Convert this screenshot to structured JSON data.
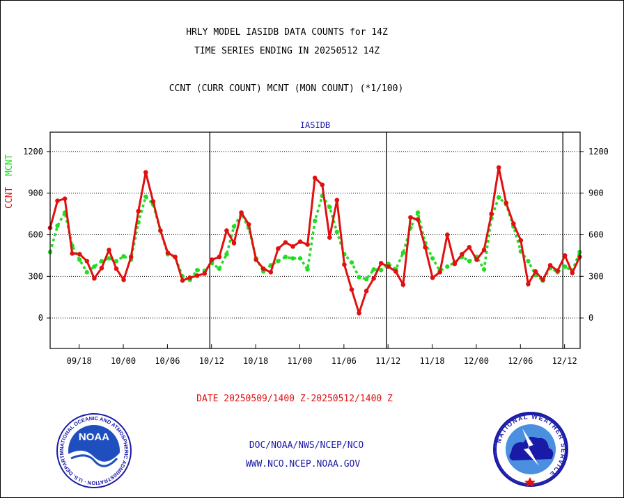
{
  "header": {
    "line1": "HRLY MODEL IASIDB DATA COUNTS for 14Z",
    "line2": "TIME SERIES ENDING IN 20250512 14Z",
    "line3": "CCNT (CURR COUNT) MCNT (MON COUNT) (*1/100)"
  },
  "footer": {
    "date_range": "DATE 20250509/1400 Z-20250512/1400 Z",
    "org_path": "DOC/NOAA/NWS/NCEP/NCO",
    "website": "WWW.NCO.NCEP.NOAA.GOV"
  },
  "logos": {
    "noaa_text": "NOAA",
    "noaa_ring": "NATIONAL OCEANIC AND ATMOSPHERIC ADMINISTRATION · U.S. DEPARTMENT OF COMMERCE ·",
    "nws_ring": "NATIONAL WEATHER SERVICE"
  },
  "chart_data": {
    "type": "line",
    "title": "IASIDB",
    "ylabel_ccnt": "CCNT",
    "ylabel_mcnt": "MCNT",
    "ylim": [
      -220,
      1340
    ],
    "yticks": [
      0,
      300,
      600,
      900,
      1200
    ],
    "grid": true,
    "x_count": 73,
    "x_tick_labels": [
      {
        "i": 3,
        "label": "09/18"
      },
      {
        "i": 9,
        "label": "10/00"
      },
      {
        "i": 15,
        "label": "10/06"
      },
      {
        "i": 21,
        "label": "10/12"
      },
      {
        "i": 27,
        "label": "10/18"
      },
      {
        "i": 33,
        "label": "11/00"
      },
      {
        "i": 39,
        "label": "11/06"
      },
      {
        "i": 45,
        "label": "11/12"
      },
      {
        "i": 51,
        "label": "11/18"
      },
      {
        "i": 57,
        "label": "12/00"
      },
      {
        "i": 63,
        "label": "12/06"
      },
      {
        "i": 69,
        "label": "12/12"
      }
    ],
    "day_separators": [
      22,
      46,
      70
    ],
    "colors": {
      "ccnt": "#e01010",
      "mcnt": "#22dd22",
      "title": "#1a1aa8"
    },
    "series": [
      {
        "name": "CCNT",
        "values": [
          650,
          845,
          860,
          465,
          460,
          410,
          285,
          360,
          490,
          355,
          275,
          440,
          770,
          1050,
          840,
          630,
          470,
          440,
          270,
          290,
          305,
          320,
          420,
          440,
          630,
          540,
          760,
          675,
          420,
          355,
          330,
          500,
          545,
          515,
          550,
          530,
          1010,
          960,
          580,
          850,
          385,
          205,
          35,
          195,
          285,
          395,
          370,
          335,
          240,
          725,
          710,
          510,
          290,
          330,
          600,
          390,
          460,
          510,
          420,
          490,
          750,
          1085,
          830,
          680,
          560,
          245,
          335,
          275,
          380,
          340,
          450,
          325,
          440
        ]
      },
      {
        "name": "MCNT",
        "values": [
          475,
          665,
          760,
          520,
          420,
          330,
          370,
          410,
          430,
          410,
          445,
          420,
          690,
          875,
          820,
          630,
          460,
          440,
          300,
          275,
          345,
          340,
          395,
          355,
          460,
          660,
          750,
          650,
          430,
          335,
          380,
          410,
          440,
          430,
          430,
          350,
          700,
          880,
          800,
          620,
          460,
          400,
          295,
          280,
          350,
          345,
          390,
          350,
          470,
          650,
          760,
          540,
          430,
          340,
          370,
          400,
          440,
          410,
          440,
          350,
          720,
          870,
          820,
          660,
          480,
          410,
          310,
          270,
          360,
          330,
          370,
          340,
          475
        ]
      }
    ]
  }
}
